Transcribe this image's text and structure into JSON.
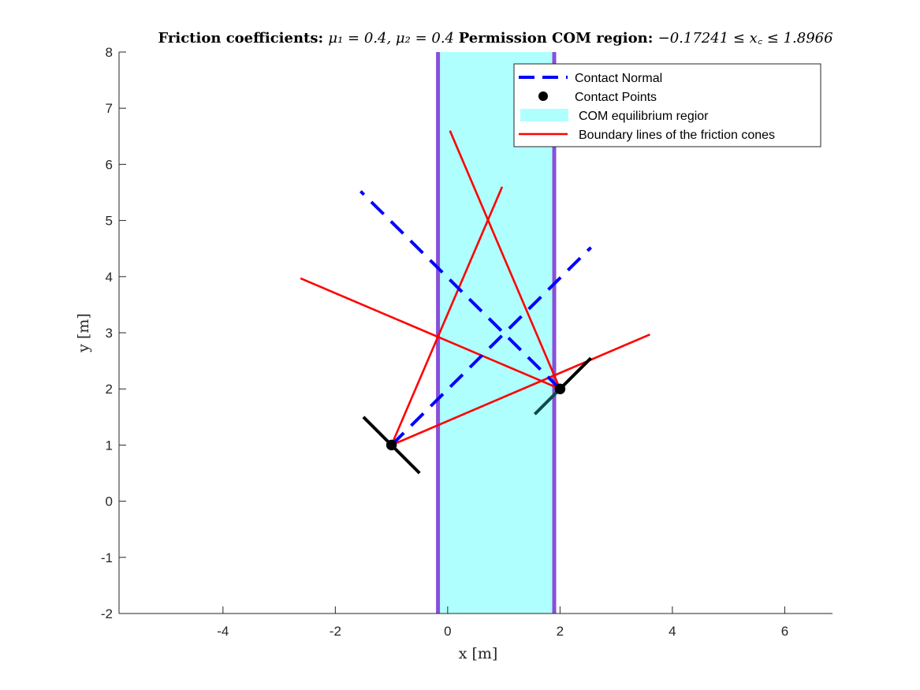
{
  "chart_data": {
    "type": "line",
    "title_parts": [
      {
        "text": "Friction coefficients: ",
        "style": "bold"
      },
      {
        "text": "μ₁ = 0.4, μ₂ = 0.4  ",
        "style": "math"
      },
      {
        "text": "Permission COM region: ",
        "style": "bold"
      },
      {
        "text": "−0.17241 ≤ x꜀ ≤ 1.8966",
        "style": "math"
      }
    ],
    "xlabel": "x [m]",
    "ylabel": "y [m]",
    "xlim": [
      -5.85,
      6.85
    ],
    "ylim": [
      -2,
      8
    ],
    "xticks": [
      -4,
      -2,
      0,
      2,
      4,
      6
    ],
    "yticks": [
      -2,
      -1,
      0,
      1,
      2,
      3,
      4,
      5,
      6,
      7,
      8
    ],
    "grid": false,
    "legend_position": "top-right",
    "legend": [
      {
        "label": "Contact Normal",
        "style": "dashed-line",
        "color": "#0000ff"
      },
      {
        "label": "Contact Points",
        "style": "marker",
        "color": "#000000"
      },
      {
        "label": "COM equilibrium regior",
        "style": "patch",
        "color": "#b0ffff"
      },
      {
        "label": "Boundary lines of the friction cones",
        "style": "line",
        "color": "#ff0000"
      }
    ],
    "com_region": {
      "xmin": -0.17241,
      "xmax": 1.8966,
      "fill": "#b0ffff",
      "edge": "#8a4fd8"
    },
    "contact_points": [
      {
        "x": -1,
        "y": 1
      },
      {
        "x": 2,
        "y": 2
      }
    ],
    "surfaces": [
      {
        "x": [
          -1.5,
          -0.5
        ],
        "y": [
          1.5,
          0.5
        ],
        "color": "#000000"
      },
      {
        "x": [
          1.55,
          2.0
        ],
        "y": [
          1.55,
          2.0
        ],
        "color": "#0f4a4a"
      },
      {
        "x": [
          2.0,
          2.55
        ],
        "y": [
          2.0,
          2.55
        ],
        "color": "#000000"
      }
    ],
    "contact_normals": [
      {
        "x": [
          -1,
          2.55
        ],
        "y": [
          1,
          4.52
        ],
        "color": "#0000ff"
      },
      {
        "x": [
          2,
          -1.55
        ],
        "y": [
          2,
          5.52
        ],
        "color": "#0000ff"
      }
    ],
    "friction_cone_boundaries": [
      {
        "x": [
          -1,
          0.97
        ],
        "y": [
          1,
          5.6
        ],
        "color": "#ff0000"
      },
      {
        "x": [
          -1,
          3.6
        ],
        "y": [
          1,
          2.97
        ],
        "color": "#ff0000"
      },
      {
        "x": [
          2,
          -2.62
        ],
        "y": [
          2,
          3.97
        ],
        "color": "#ff0000"
      },
      {
        "x": [
          2,
          0.04
        ],
        "y": [
          2,
          6.6
        ],
        "color": "#ff0000"
      }
    ]
  }
}
